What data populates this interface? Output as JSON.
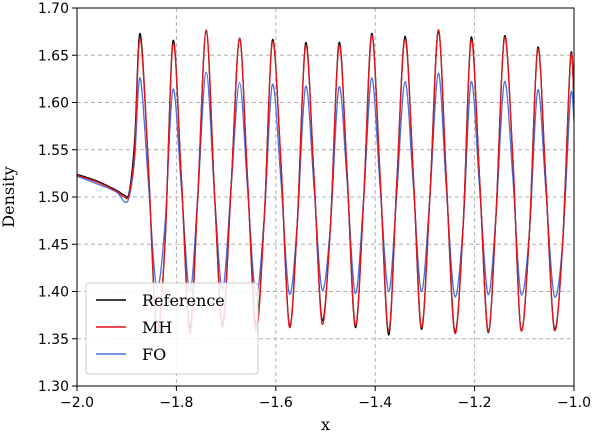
{
  "chart_data": {
    "type": "line",
    "title": "",
    "xlabel": "x",
    "ylabel": "Density",
    "xlim": [
      -2.0,
      -1.0
    ],
    "ylim": [
      1.3,
      1.7
    ],
    "x_ticks": [
      -2.0,
      -1.8,
      -1.6,
      -1.4,
      -1.2,
      -1.0
    ],
    "x_tick_labels": [
      "−2.0",
      "−1.8",
      "−1.6",
      "−1.4",
      "−1.2",
      "−1.0"
    ],
    "y_ticks": [
      1.3,
      1.35,
      1.4,
      1.45,
      1.5,
      1.55,
      1.6,
      1.65,
      1.7
    ],
    "y_tick_labels": [
      "1.30",
      "1.35",
      "1.40",
      "1.45",
      "1.50",
      "1.55",
      "1.60",
      "1.65",
      "1.70"
    ],
    "grid": true,
    "legend_position": "bottom-left",
    "series": [
      {
        "name": "Reference",
        "color": "#000000",
        "x": [
          -2.0,
          -1.96,
          -1.92,
          -1.905,
          -1.895,
          -1.884,
          -1.873,
          -1.857,
          -1.84,
          -1.823,
          -1.807,
          -1.79,
          -1.773,
          -1.757,
          -1.74,
          -1.723,
          -1.707,
          -1.69,
          -1.673,
          -1.657,
          -1.64,
          -1.623,
          -1.607,
          -1.59,
          -1.573,
          -1.557,
          -1.54,
          -1.523,
          -1.507,
          -1.49,
          -1.473,
          -1.457,
          -1.44,
          -1.423,
          -1.407,
          -1.39,
          -1.373,
          -1.357,
          -1.34,
          -1.323,
          -1.307,
          -1.29,
          -1.273,
          -1.257,
          -1.24,
          -1.223,
          -1.207,
          -1.19,
          -1.173,
          -1.157,
          -1.14,
          -1.123,
          -1.107,
          -1.09,
          -1.073,
          -1.057,
          -1.04,
          -1.023,
          -1.007,
          -1.0
        ],
        "values": [
          1.524,
          1.517,
          1.507,
          1.502,
          1.505,
          1.56,
          1.673,
          1.54,
          1.36,
          1.45,
          1.665,
          1.52,
          1.362,
          1.5,
          1.675,
          1.5,
          1.365,
          1.51,
          1.668,
          1.52,
          1.364,
          1.48,
          1.666,
          1.54,
          1.365,
          1.47,
          1.663,
          1.52,
          1.37,
          1.47,
          1.663,
          1.53,
          1.362,
          1.5,
          1.673,
          1.52,
          1.354,
          1.51,
          1.67,
          1.52,
          1.36,
          1.5,
          1.676,
          1.52,
          1.358,
          1.47,
          1.669,
          1.52,
          1.357,
          1.48,
          1.67,
          1.54,
          1.36,
          1.46,
          1.658,
          1.52,
          1.362,
          1.45,
          1.648,
          1.6
        ]
      },
      {
        "name": "MH",
        "color": "#e8141a",
        "x": [
          -2.0,
          -1.96,
          -1.92,
          -1.905,
          -1.895,
          -1.884,
          -1.873,
          -1.857,
          -1.84,
          -1.823,
          -1.807,
          -1.79,
          -1.773,
          -1.757,
          -1.74,
          -1.723,
          -1.707,
          -1.69,
          -1.673,
          -1.657,
          -1.64,
          -1.623,
          -1.607,
          -1.59,
          -1.573,
          -1.557,
          -1.54,
          -1.523,
          -1.507,
          -1.49,
          -1.473,
          -1.457,
          -1.44,
          -1.423,
          -1.407,
          -1.39,
          -1.373,
          -1.357,
          -1.34,
          -1.323,
          -1.307,
          -1.29,
          -1.273,
          -1.257,
          -1.24,
          -1.223,
          -1.207,
          -1.19,
          -1.173,
          -1.157,
          -1.14,
          -1.123,
          -1.107,
          -1.09,
          -1.073,
          -1.057,
          -1.04,
          -1.023,
          -1.007,
          -1.0
        ],
        "values": [
          1.523,
          1.516,
          1.506,
          1.5,
          1.503,
          1.55,
          1.668,
          1.54,
          1.362,
          1.45,
          1.662,
          1.52,
          1.356,
          1.5,
          1.677,
          1.5,
          1.362,
          1.51,
          1.668,
          1.52,
          1.358,
          1.48,
          1.664,
          1.54,
          1.363,
          1.47,
          1.66,
          1.52,
          1.366,
          1.47,
          1.66,
          1.53,
          1.364,
          1.5,
          1.671,
          1.52,
          1.358,
          1.51,
          1.667,
          1.52,
          1.362,
          1.5,
          1.677,
          1.52,
          1.356,
          1.47,
          1.666,
          1.52,
          1.358,
          1.48,
          1.668,
          1.54,
          1.36,
          1.46,
          1.656,
          1.52,
          1.36,
          1.45,
          1.646,
          1.6
        ]
      },
      {
        "name": "FO",
        "color": "#4c6fe0",
        "x": [
          -2.0,
          -1.96,
          -1.92,
          -1.905,
          -1.895,
          -1.884,
          -1.873,
          -1.857,
          -1.84,
          -1.823,
          -1.807,
          -1.79,
          -1.773,
          -1.757,
          -1.74,
          -1.723,
          -1.707,
          -1.69,
          -1.673,
          -1.657,
          -1.64,
          -1.623,
          -1.607,
          -1.59,
          -1.573,
          -1.557,
          -1.54,
          -1.523,
          -1.507,
          -1.49,
          -1.473,
          -1.457,
          -1.44,
          -1.423,
          -1.407,
          -1.39,
          -1.373,
          -1.357,
          -1.34,
          -1.323,
          -1.307,
          -1.29,
          -1.273,
          -1.257,
          -1.24,
          -1.223,
          -1.207,
          -1.19,
          -1.173,
          -1.157,
          -1.14,
          -1.123,
          -1.107,
          -1.09,
          -1.073,
          -1.057,
          -1.04,
          -1.023,
          -1.007,
          -1.0
        ],
        "values": [
          1.522,
          1.514,
          1.505,
          1.495,
          1.5,
          1.54,
          1.626,
          1.52,
          1.405,
          1.47,
          1.614,
          1.51,
          1.4,
          1.5,
          1.632,
          1.5,
          1.402,
          1.51,
          1.621,
          1.51,
          1.396,
          1.48,
          1.619,
          1.52,
          1.398,
          1.47,
          1.617,
          1.51,
          1.402,
          1.47,
          1.616,
          1.52,
          1.398,
          1.5,
          1.626,
          1.51,
          1.4,
          1.5,
          1.622,
          1.51,
          1.4,
          1.5,
          1.631,
          1.51,
          1.395,
          1.47,
          1.622,
          1.51,
          1.397,
          1.48,
          1.622,
          1.52,
          1.398,
          1.46,
          1.613,
          1.51,
          1.396,
          1.45,
          1.606,
          1.58
        ]
      }
    ]
  }
}
